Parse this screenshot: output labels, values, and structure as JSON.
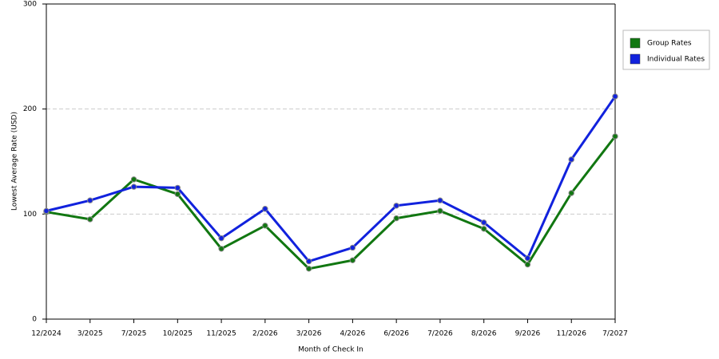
{
  "chart_data": {
    "type": "line",
    "x_label": "Month of Check In",
    "y_label": "Lowest Average Rate (USD)",
    "categories": [
      "12/2024",
      "3/2025",
      "7/2025",
      "10/2025",
      "11/2025",
      "2/2026",
      "3/2026",
      "4/2026",
      "6/2026",
      "7/2026",
      "8/2026",
      "9/2026",
      "11/2026",
      "7/2027"
    ],
    "series": [
      {
        "name": "Group Rates",
        "color": "#117711",
        "values": [
          102,
          95,
          133,
          119,
          67,
          89,
          48,
          56,
          96,
          103,
          86,
          52,
          120,
          174
        ]
      },
      {
        "name": "Individual Rates",
        "color": "#1122dd",
        "values": [
          103,
          113,
          126,
          125,
          77,
          105,
          55,
          68,
          108,
          113,
          92,
          58,
          152,
          212
        ]
      }
    ],
    "ylim": [
      0,
      300
    ],
    "yticks": [
      0,
      100,
      200,
      300
    ],
    "grid": true,
    "legend": "right"
  }
}
